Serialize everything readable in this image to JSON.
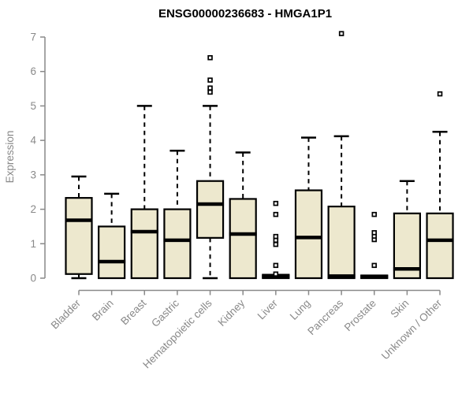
{
  "chart_data": {
    "type": "boxplot",
    "title": "ENSG00000236683 - HMGA1P1",
    "ylabel": "Expression",
    "xlabel": "",
    "ylim": [
      0,
      7
    ],
    "yticks": [
      0,
      1,
      2,
      3,
      4,
      5,
      6,
      7
    ],
    "grid": false,
    "legend": null,
    "colors": {
      "box_fill": "#EDE8CE",
      "box_stroke": "#000000",
      "median": "#000000",
      "axis": "#898989",
      "title": "#000000",
      "outlier_fill": "#FFFFFF"
    },
    "categories": [
      "Bladder",
      "Brain",
      "Breast",
      "Gastric",
      "Hematopoietic cells",
      "Kidney",
      "Liver",
      "Lung",
      "Pancreas",
      "Prostate",
      "Skin",
      "Unknown / Other"
    ],
    "boxes": [
      {
        "category": "Bladder",
        "whisker_low": 0.0,
        "q1": 0.12,
        "median": 1.68,
        "q3": 2.33,
        "whisker_high": 2.95,
        "outliers": []
      },
      {
        "category": "Brain",
        "whisker_low": 0.0,
        "q1": 0.0,
        "median": 0.48,
        "q3": 1.5,
        "whisker_high": 2.45,
        "outliers": []
      },
      {
        "category": "Breast",
        "whisker_low": 0.0,
        "q1": 0.0,
        "median": 1.35,
        "q3": 2.0,
        "whisker_high": 5.0,
        "outliers": []
      },
      {
        "category": "Gastric",
        "whisker_low": 0.0,
        "q1": 0.0,
        "median": 1.1,
        "q3": 2.0,
        "whisker_high": 3.7,
        "outliers": []
      },
      {
        "category": "Hematopoietic cells",
        "whisker_low": 0.0,
        "q1": 1.17,
        "median": 2.15,
        "q3": 2.82,
        "whisker_high": 5.0,
        "outliers": [
          5.4,
          5.52,
          5.75,
          6.4
        ]
      },
      {
        "category": "Kidney",
        "whisker_low": 0.0,
        "q1": 0.0,
        "median": 1.28,
        "q3": 2.3,
        "whisker_high": 3.65,
        "outliers": []
      },
      {
        "category": "Liver",
        "whisker_low": 0.0,
        "q1": 0.0,
        "median": 0.05,
        "q3": 0.1,
        "whisker_high": 0.1,
        "outliers": [
          0.12,
          0.37,
          0.98,
          1.1,
          1.21,
          1.85,
          2.17
        ]
      },
      {
        "category": "Lung",
        "whisker_low": 0.0,
        "q1": 0.0,
        "median": 1.18,
        "q3": 2.55,
        "whisker_high": 4.08,
        "outliers": []
      },
      {
        "category": "Pancreas",
        "whisker_low": 0.0,
        "q1": 0.0,
        "median": 0.06,
        "q3": 2.08,
        "whisker_high": 4.12,
        "outliers": [
          7.1
        ]
      },
      {
        "category": "Prostate",
        "whisker_low": 0.0,
        "q1": 0.0,
        "median": 0.04,
        "q3": 0.08,
        "whisker_high": 0.08,
        "outliers": [
          0.37,
          1.12,
          1.22,
          1.32,
          1.85
        ]
      },
      {
        "category": "Skin",
        "whisker_low": 0.0,
        "q1": 0.0,
        "median": 0.27,
        "q3": 1.88,
        "whisker_high": 2.82,
        "outliers": []
      },
      {
        "category": "Unknown / Other",
        "whisker_low": 0.0,
        "q1": 0.0,
        "median": 1.1,
        "q3": 1.88,
        "whisker_high": 4.25,
        "outliers": [
          5.35
        ]
      }
    ]
  }
}
